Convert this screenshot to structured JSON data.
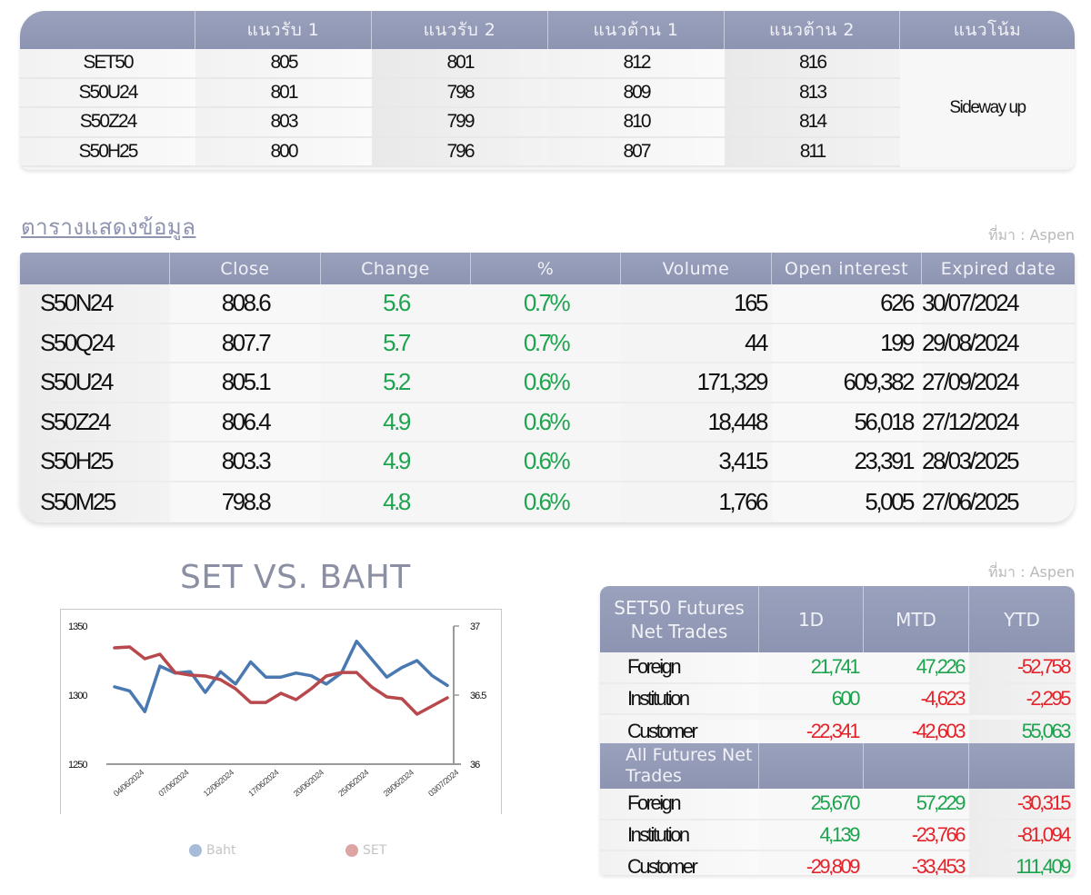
{
  "sr_table": {
    "headers": [
      "",
      "แนวรับ 1",
      "แนวรับ 2",
      "แนวต้าน 1",
      "แนวต้าน 2",
      "แนวโน้ม"
    ],
    "rows": [
      {
        "symbol": "SET50",
        "s1": "805",
        "s2": "801",
        "r1": "812",
        "r2": "816"
      },
      {
        "symbol": "S50U24",
        "s1": "801",
        "s2": "798",
        "r1": "809",
        "r2": "813"
      },
      {
        "symbol": "S50Z24",
        "s1": "803",
        "s2": "799",
        "r1": "810",
        "r2": "814"
      },
      {
        "symbol": "S50H25",
        "s1": "800",
        "s2": "796",
        "r1": "807",
        "r2": "811"
      }
    ],
    "trend": "Sideway up"
  },
  "data_table": {
    "title": "ตารางแสดงข้อมูล",
    "source": "ที่มา : Aspen",
    "headers": [
      "",
      "Close",
      "Change",
      "%",
      "Volume",
      "Open interest",
      "Expired date"
    ],
    "rows": [
      {
        "symbol": "S50N24",
        "close": "808.6",
        "change": "5.6",
        "pct": "0.7%",
        "volume": "165",
        "oi": "626",
        "expiry": "30/07/2024"
      },
      {
        "symbol": "S50Q24",
        "close": "807.7",
        "change": "5.7",
        "pct": "0.7%",
        "volume": "44",
        "oi": "199",
        "expiry": "29/08/2024"
      },
      {
        "symbol": "S50U24",
        "close": "805.1",
        "change": "5.2",
        "pct": "0.6%",
        "volume": "171,329",
        "oi": "609,382",
        "expiry": "27/09/2024"
      },
      {
        "symbol": "S50Z24",
        "close": "806.4",
        "change": "4.9",
        "pct": "0.6%",
        "volume": "18,448",
        "oi": "56,018",
        "expiry": "27/12/2024"
      },
      {
        "symbol": "S50H25",
        "close": "803.3",
        "change": "4.9",
        "pct": "0.6%",
        "volume": "3,415",
        "oi": "23,391",
        "expiry": "28/03/2025"
      },
      {
        "symbol": "S50M25",
        "close": "798.8",
        "change": "4.8",
        "pct": "0.6%",
        "volume": "1,766",
        "oi": "5,005",
        "expiry": "27/06/2025"
      }
    ]
  },
  "net_trades": {
    "source": "ที่มา : Aspen",
    "headers": [
      "SET50 Futures Net Trades",
      "1D",
      "MTD",
      "YTD"
    ],
    "set50_rows": [
      {
        "label": "Foreign",
        "d1": "21,741",
        "mtd": "47,226",
        "ytd": "-52,758"
      },
      {
        "label": "Institution",
        "d1": "600",
        "mtd": "-4,623",
        "ytd": "-2,295"
      },
      {
        "label": "Customer",
        "d1": "-22,341",
        "mtd": "-42,603",
        "ytd": "55,063"
      }
    ],
    "all_header": "All Futures Net Trades",
    "all_rows": [
      {
        "label": "Foreign",
        "d1": "25,670",
        "mtd": "57,229",
        "ytd": "-30,315"
      },
      {
        "label": "Institution",
        "d1": "4,139",
        "mtd": "-23,766",
        "ytd": "-81,094"
      },
      {
        "label": "Customer",
        "d1": "-29,809",
        "mtd": "-33,453",
        "ytd": "111,409"
      }
    ]
  },
  "colors": {
    "header_bg": "#9099b6",
    "positive": "#1ea34f",
    "negative": "#e3242b",
    "baht_line": "#4a78b0",
    "set_line": "#b8484c"
  },
  "chart_data": {
    "type": "line",
    "title": "SET VS. BAHT",
    "xlabel": "",
    "ylabel": "",
    "x_tick_labels": [
      "04/06/2024",
      "07/06/2024",
      "12/06/2024",
      "17/06/2024",
      "20/06/2024",
      "25/06/2024",
      "28/06/2024",
      "03/07/2024"
    ],
    "left_axis": {
      "series": "SET",
      "ylim": [
        1250,
        1350
      ],
      "ticks": [
        "1350",
        "1300",
        "1250"
      ]
    },
    "right_axis": {
      "series": "Baht",
      "ylim": [
        36,
        37
      ],
      "ticks": [
        "37",
        "36.5",
        "36"
      ]
    },
    "grid": false,
    "legend_position": "bottom",
    "series": [
      {
        "name": "Baht",
        "axis": "right",
        "color": "#4a78b0",
        "values": [
          36.56,
          36.53,
          36.38,
          36.71,
          36.66,
          36.67,
          36.52,
          36.67,
          36.58,
          36.74,
          36.63,
          36.63,
          36.66,
          36.64,
          36.58,
          36.66,
          36.89,
          36.76,
          36.63,
          36.7,
          36.75,
          36.64,
          36.57
        ]
      },
      {
        "name": "SET",
        "axis": "left",
        "color": "#b8484c",
        "values": [
          1334.2,
          1334.9,
          1326.3,
          1329.6,
          1316.4,
          1314.5,
          1313.8,
          1311.2,
          1304.6,
          1294.7,
          1294.7,
          1301.3,
          1296.7,
          1304.6,
          1313.8,
          1316.4,
          1316.4,
          1305.9,
          1298.7,
          1297.4,
          1286.2,
          1292.1,
          1298.0
        ]
      }
    ],
    "legend": [
      "Baht",
      "SET"
    ]
  }
}
